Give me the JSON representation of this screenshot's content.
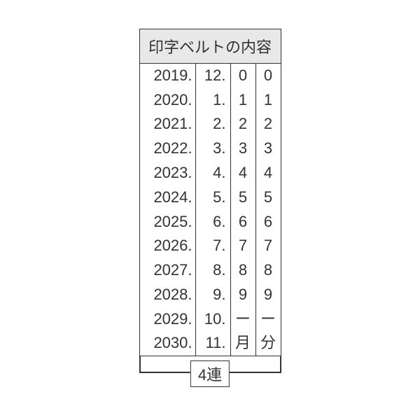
{
  "table": {
    "header": "印字ベルトの内容",
    "columns": {
      "year": [
        "2019.",
        "2020.",
        "2021.",
        "2022.",
        "2023.",
        "2024.",
        "2025.",
        "2026.",
        "2027.",
        "2028.",
        "2029.",
        "2030."
      ],
      "month": [
        "12.",
        "1.",
        "2.",
        "3.",
        "4.",
        "5.",
        "6.",
        "7.",
        "8.",
        "9.",
        "10.",
        "11."
      ],
      "d1": [
        "0",
        "1",
        "2",
        "3",
        "4",
        "5",
        "6",
        "7",
        "8",
        "9",
        "ー",
        "月"
      ],
      "d2": [
        "0",
        "1",
        "2",
        "3",
        "4",
        "5",
        "6",
        "7",
        "8",
        "9",
        "ー",
        "分"
      ]
    },
    "column_widths": {
      "year": 80,
      "month": 50,
      "d1": 36,
      "d2": 36
    },
    "header_bg": "#e8e8e8",
    "border_color": "#333333",
    "text_color": "#333333",
    "font_size": 22
  },
  "bracket": {
    "label": "4連"
  }
}
